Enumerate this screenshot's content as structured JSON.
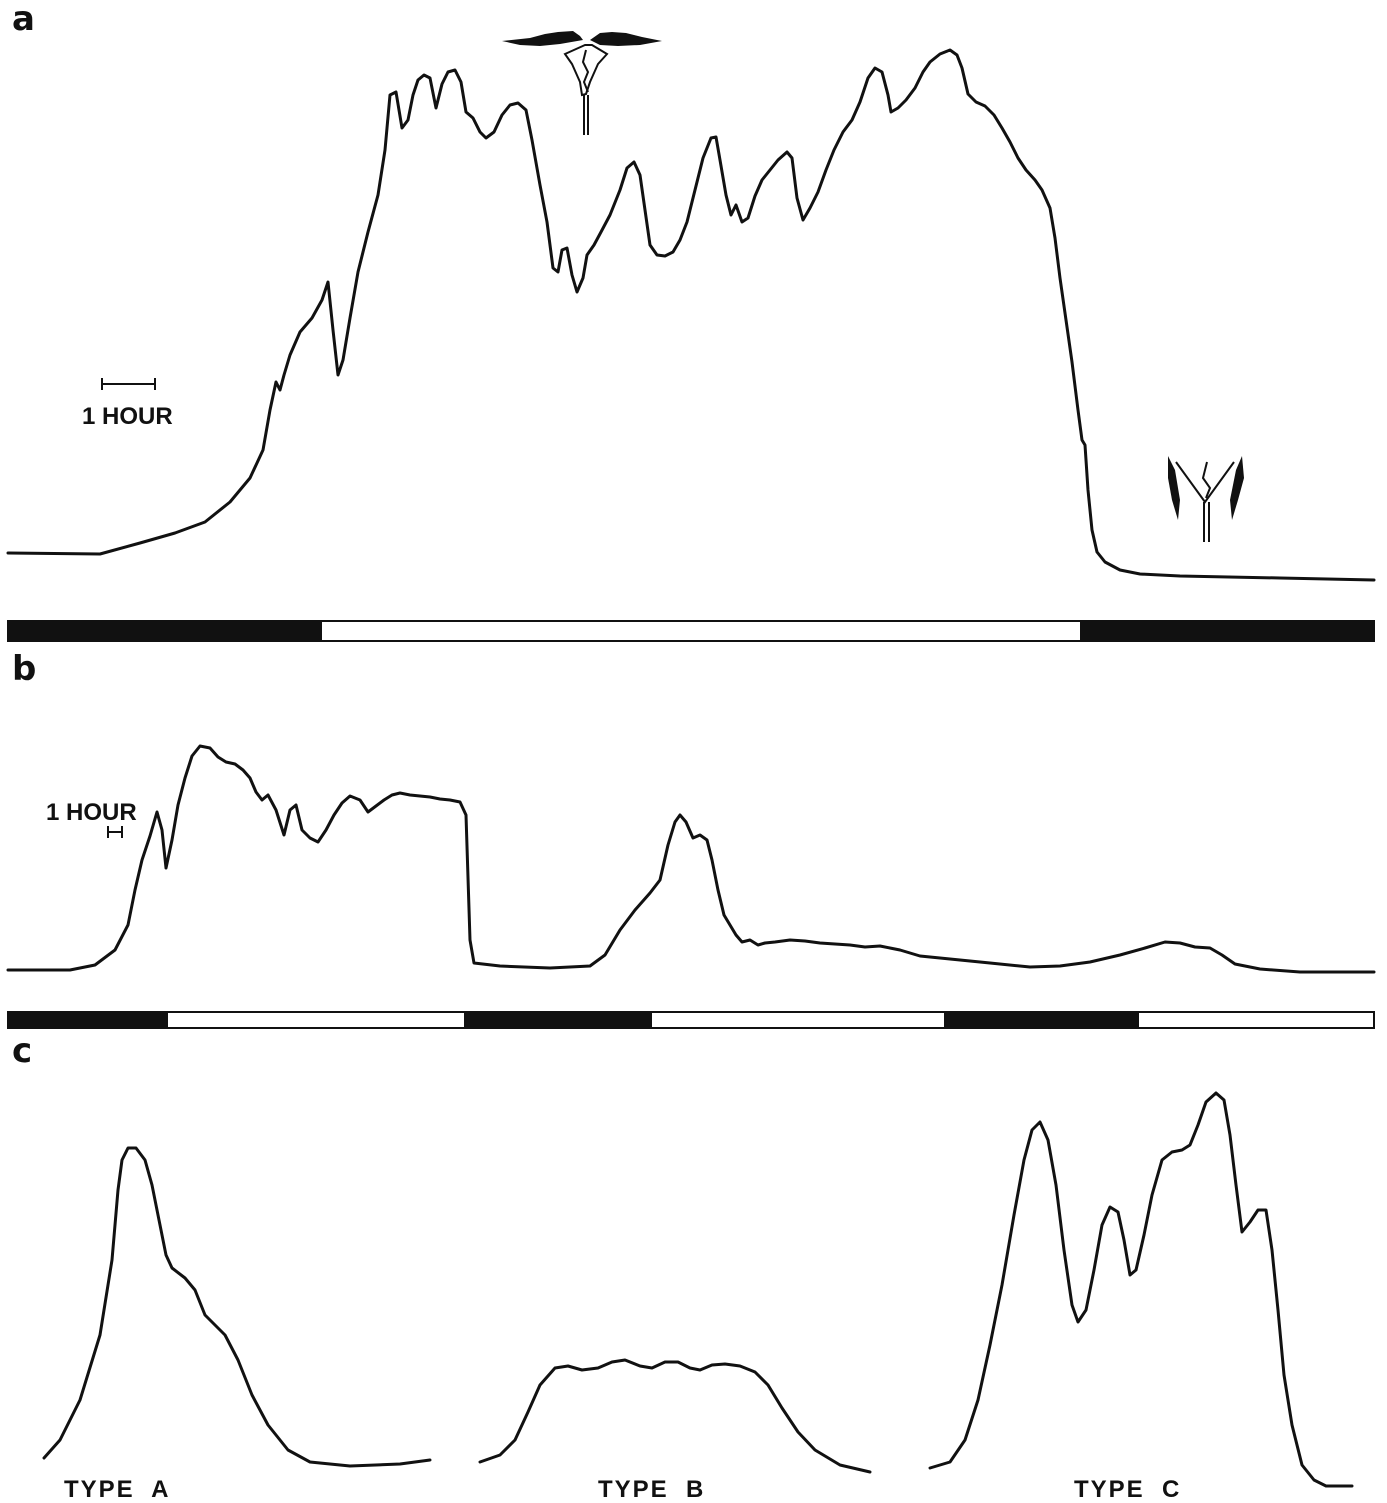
{
  "panels": {
    "a": {
      "label": "a",
      "scale_label": "1 HOUR"
    },
    "b": {
      "label": "b",
      "scale_label": "1 HOUR"
    },
    "c": {
      "label": "c",
      "types": [
        "TYPE  A",
        "TYPE  B",
        "TYPE  C"
      ]
    }
  },
  "icons": [
    "flower-open-icon",
    "flower-closed-icon"
  ]
}
